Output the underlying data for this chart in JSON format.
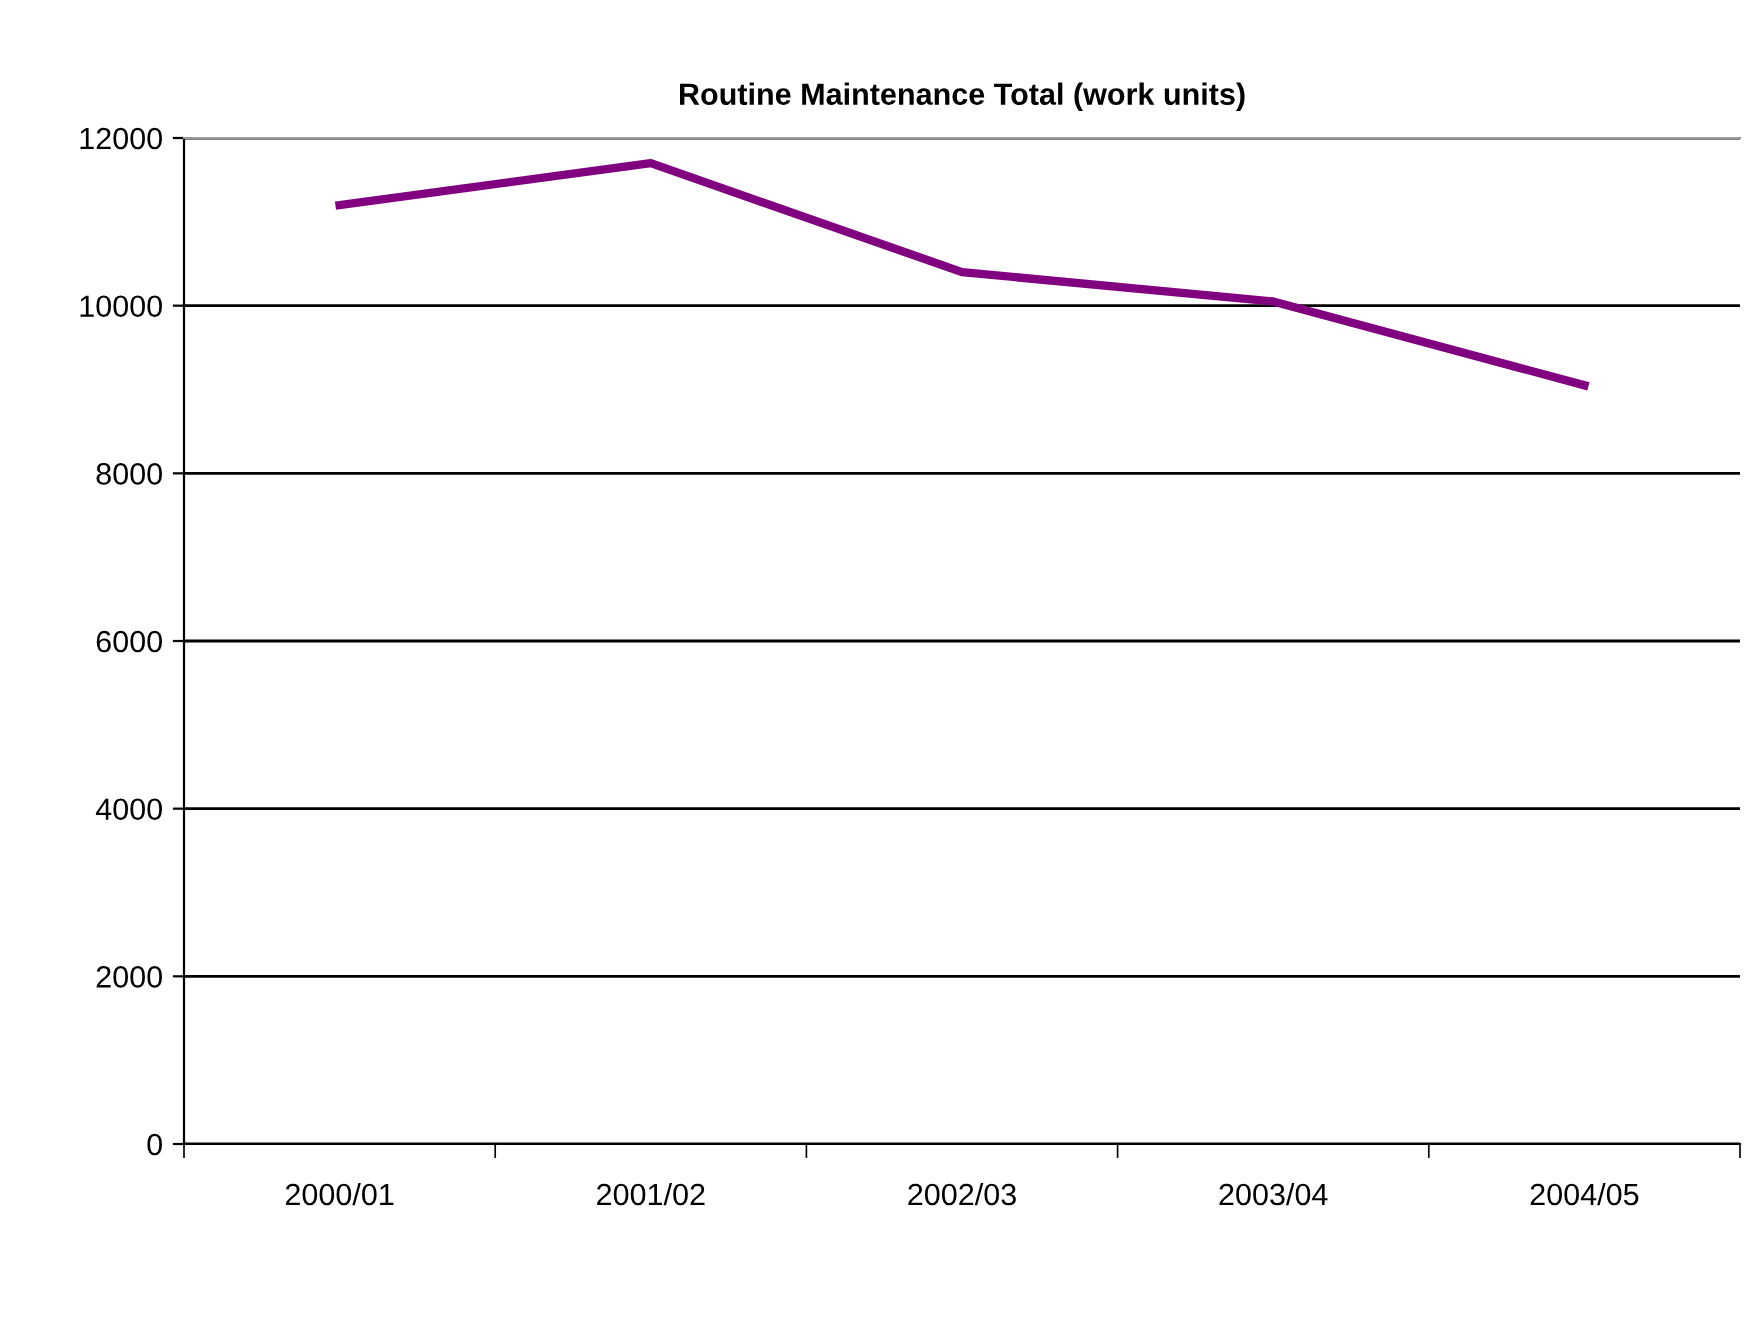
{
  "chart_data": {
    "type": "line",
    "title": "Routine Maintenance Total (work units)",
    "categories": [
      "2000/01",
      "2001/02",
      "2002/03",
      "2003/04",
      "2004/05"
    ],
    "series": [
      {
        "color": "#800080",
        "values": [
          11200,
          11700,
          10400,
          10050,
          9050
        ]
      }
    ],
    "ylim": [
      0,
      12000
    ],
    "yticks": [
      0,
      2000,
      4000,
      6000,
      8000,
      10000,
      12000
    ],
    "grid": "y",
    "legend": false,
    "marker": "none",
    "line_style": "solid"
  }
}
